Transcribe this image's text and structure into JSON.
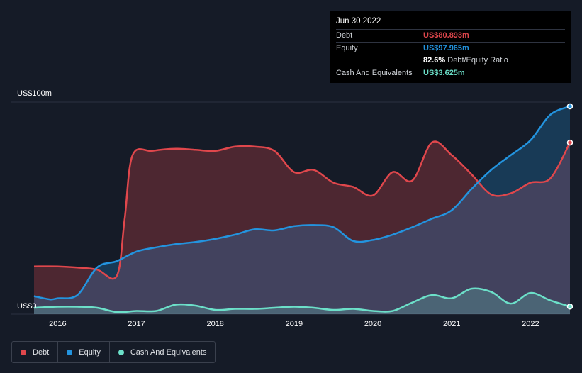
{
  "tooltip": {
    "date": "Jun 30 2022",
    "rows": [
      {
        "label": "Debt",
        "value": "US$80.893m",
        "color": "#e0474c"
      },
      {
        "label": "Equity",
        "value": "US$97.965m",
        "color": "#2394df"
      },
      {
        "label": "",
        "value": "82.6%",
        "sub": "Debt/Equity Ratio",
        "color": "#ffffff"
      },
      {
        "label": "Cash And Equivalents",
        "value": "US$3.625m",
        "color": "#6ce0c9"
      }
    ]
  },
  "legend": [
    {
      "label": "Debt",
      "color": "#e0474c"
    },
    {
      "label": "Equity",
      "color": "#2394df"
    },
    {
      "label": "Cash And Equivalents",
      "color": "#6ce0c9"
    }
  ],
  "chart_data": {
    "type": "area",
    "title": "",
    "xlabel": "",
    "ylabel": "",
    "y_axis_labels": [
      "US$100m",
      "US$0"
    ],
    "ylim": [
      0,
      100
    ],
    "xlim": [
      2015.7,
      2022.5
    ],
    "x_ticks": [
      2016,
      2017,
      2018,
      2019,
      2020,
      2021,
      2022
    ],
    "gridlines": [
      0,
      50,
      100
    ],
    "series": [
      {
        "name": "Debt",
        "color": "#e0474c",
        "x": [
          2015.7,
          2016.0,
          2016.25,
          2016.5,
          2016.75,
          2016.85,
          2016.95,
          2017.2,
          2017.5,
          2017.75,
          2018.0,
          2018.25,
          2018.5,
          2018.75,
          2019.0,
          2019.25,
          2019.5,
          2019.75,
          2020.0,
          2020.25,
          2020.5,
          2020.75,
          2021.0,
          2021.25,
          2021.5,
          2021.75,
          2022.0,
          2022.25,
          2022.5
        ],
        "values": [
          22.5,
          22.5,
          22,
          21,
          18,
          45,
          75,
          77,
          78,
          77.5,
          77,
          79,
          79,
          77,
          67,
          68,
          62,
          60,
          56,
          67,
          63,
          81,
          75,
          66,
          56.5,
          57,
          62,
          64,
          80.9
        ]
      },
      {
        "name": "Equity",
        "color": "#2394df",
        "x": [
          2015.7,
          2015.9,
          2016.0,
          2016.25,
          2016.5,
          2016.75,
          2017.0,
          2017.25,
          2017.5,
          2017.75,
          2018.0,
          2018.25,
          2018.5,
          2018.75,
          2019.0,
          2019.25,
          2019.5,
          2019.75,
          2020.0,
          2020.25,
          2020.5,
          2020.75,
          2021.0,
          2021.25,
          2021.5,
          2021.75,
          2022.0,
          2022.25,
          2022.5
        ],
        "values": [
          8.5,
          7,
          7.5,
          9,
          22,
          25,
          29.5,
          31.5,
          33,
          34,
          35.5,
          37.5,
          40,
          39.5,
          41.5,
          42,
          41,
          34.5,
          35,
          37.5,
          41,
          45,
          49,
          59,
          68,
          75,
          82,
          94,
          98
        ]
      },
      {
        "name": "Cash And Equivalents",
        "color": "#6ce0c9",
        "x": [
          2015.7,
          2016.0,
          2016.25,
          2016.5,
          2016.75,
          2017.0,
          2017.25,
          2017.5,
          2017.75,
          2018.0,
          2018.25,
          2018.5,
          2018.75,
          2019.0,
          2019.25,
          2019.5,
          2019.75,
          2020.0,
          2020.25,
          2020.5,
          2020.75,
          2021.0,
          2021.25,
          2021.5,
          2021.75,
          2022.0,
          2022.25,
          2022.5
        ],
        "values": [
          3,
          3.5,
          3.5,
          3,
          1,
          1.5,
          1.5,
          4.5,
          4,
          2,
          2.5,
          2.5,
          3,
          3.5,
          3,
          2,
          2.5,
          1.5,
          1.5,
          5.5,
          9,
          7.5,
          12,
          10.5,
          5,
          10,
          6.5,
          3.6
        ]
      }
    ]
  }
}
